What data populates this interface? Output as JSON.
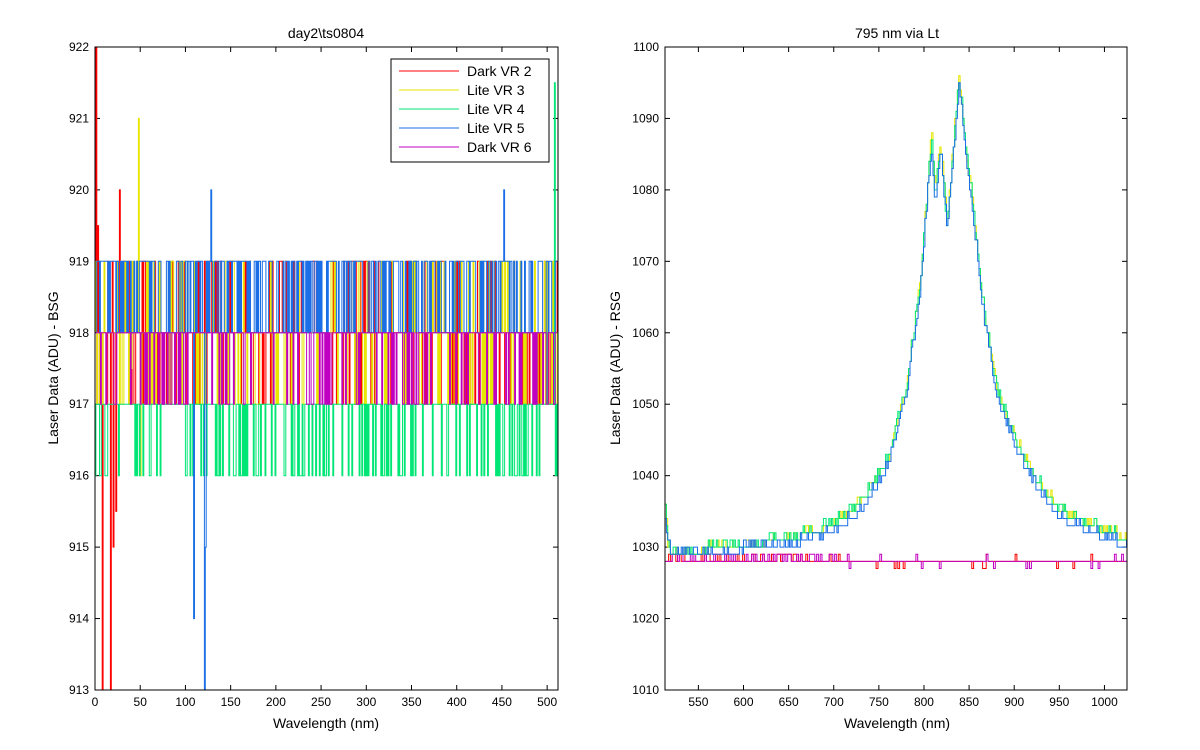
{
  "chart_data": [
    {
      "type": "line",
      "title": "day2\\ts0804",
      "xlabel": "Wavelength (nm)",
      "ylabel": "Laser Data (ADU) - BSG",
      "xlim": [
        0,
        512
      ],
      "ylim": [
        913,
        922
      ],
      "xticks": [
        0,
        50,
        100,
        150,
        200,
        250,
        300,
        350,
        400,
        450,
        500
      ],
      "yticks": [
        913,
        914,
        915,
        916,
        917,
        918,
        919,
        920,
        921,
        922
      ],
      "grid": false,
      "legend_position": "top-right",
      "series": [
        {
          "name": "Dark VR 2",
          "color": "#ff0000",
          "baseline": 918,
          "noise_high": 919,
          "noise_low": 917,
          "noise_rate": 0.35,
          "spikes": [
            [
              1,
              922
            ],
            [
              3,
              919.5
            ],
            [
              8,
              913
            ],
            [
              17,
              913
            ],
            [
              20,
              915
            ],
            [
              23,
              915.5
            ],
            [
              27,
              920
            ]
          ]
        },
        {
          "name": "Lite VR 3",
          "color": "#e6e600",
          "baseline": 918,
          "noise_high": 919,
          "noise_low": 917,
          "noise_rate": 0.3,
          "spikes": [
            [
              40,
              917.5
            ],
            [
              48,
              921
            ],
            [
              50,
              916
            ]
          ]
        },
        {
          "name": "Lite VR 4",
          "color": "#00e676",
          "baseline": 917,
          "noise_high": 916,
          "noise_low": 916,
          "noise_rate": 0.25,
          "spikes": [
            [
              354,
              916
            ],
            [
              465,
              916
            ],
            [
              500,
              918
            ],
            [
              508,
              921.5
            ]
          ]
        },
        {
          "name": "Lite VR 5",
          "color": "#1a6fe6",
          "baseline": 918,
          "noise_high": 919,
          "noise_low": 919,
          "noise_rate": 0.55,
          "spikes": [
            [
              109,
              914
            ],
            [
              121,
              913
            ],
            [
              122,
              915
            ],
            [
              128,
              920
            ],
            [
              452,
              920
            ]
          ]
        },
        {
          "name": "Dark VR 6",
          "color": "#c000c0",
          "baseline": 918,
          "noise_high": 917,
          "noise_low": 917,
          "noise_rate": 0.18,
          "spikes": []
        }
      ]
    },
    {
      "type": "line",
      "title": "795 nm via Lt",
      "xlabel": "Wavelength (nm)",
      "ylabel": "Laser Data (ADU) - RSG",
      "xlim": [
        513,
        1025
      ],
      "ylim": [
        1010,
        1100
      ],
      "xticks": [
        550,
        600,
        650,
        700,
        750,
        800,
        850,
        900,
        950,
        1000
      ],
      "yticks": [
        1010,
        1020,
        1030,
        1040,
        1050,
        1060,
        1070,
        1080,
        1090,
        1100
      ],
      "grid": false,
      "series": [
        {
          "color": "#ff0000",
          "shape": "flat",
          "baseline": 1028
        },
        {
          "color": "#c000c0",
          "shape": "flat",
          "baseline": 1028
        },
        {
          "color": "#e6e600",
          "shape": "peak",
          "points": [
            [
              513,
              1036
            ],
            [
              516,
              1030
            ],
            [
              520,
              1029
            ],
            [
              560,
              1029.5
            ],
            [
              600,
              1030
            ],
            [
              650,
              1031
            ],
            [
              700,
              1033
            ],
            [
              730,
              1036
            ],
            [
              760,
              1042
            ],
            [
              780,
              1052
            ],
            [
              795,
              1066
            ],
            [
              803,
              1079
            ],
            [
              808,
              1088
            ],
            [
              812,
              1080
            ],
            [
              818,
              1087
            ],
            [
              825,
              1075
            ],
            [
              832,
              1085
            ],
            [
              838,
              1096
            ],
            [
              843,
              1090
            ],
            [
              847,
              1084
            ],
            [
              852,
              1080
            ],
            [
              865,
              1064
            ],
            [
              880,
              1052
            ],
            [
              900,
              1045
            ],
            [
              920,
              1040
            ],
            [
              950,
              1035
            ],
            [
              1000,
              1032
            ],
            [
              1025,
              1031
            ]
          ]
        },
        {
          "color": "#00e676",
          "shape": "peak",
          "points": [
            [
              513,
              1035
            ],
            [
              516,
              1030
            ],
            [
              520,
              1029
            ],
            [
              560,
              1029.5
            ],
            [
              600,
              1030
            ],
            [
              650,
              1031
            ],
            [
              700,
              1033
            ],
            [
              730,
              1036
            ],
            [
              760,
              1042
            ],
            [
              780,
              1052
            ],
            [
              795,
              1066
            ],
            [
              803,
              1079
            ],
            [
              808,
              1087
            ],
            [
              812,
              1079
            ],
            [
              818,
              1086
            ],
            [
              825,
              1075
            ],
            [
              832,
              1085
            ],
            [
              838,
              1095
            ],
            [
              843,
              1090
            ],
            [
              847,
              1084
            ],
            [
              852,
              1080
            ],
            [
              865,
              1064
            ],
            [
              880,
              1052
            ],
            [
              900,
              1045
            ],
            [
              920,
              1040
            ],
            [
              950,
              1035
            ],
            [
              1000,
              1032
            ],
            [
              1025,
              1031
            ]
          ]
        },
        {
          "color": "#1a6fe6",
          "shape": "peak",
          "points": [
            [
              513,
              1034
            ],
            [
              516,
              1030
            ],
            [
              520,
              1029
            ],
            [
              560,
              1029
            ],
            [
              600,
              1029.5
            ],
            [
              650,
              1030
            ],
            [
              700,
              1032
            ],
            [
              730,
              1035
            ],
            [
              760,
              1041
            ],
            [
              780,
              1051
            ],
            [
              795,
              1065
            ],
            [
              803,
              1078
            ],
            [
              808,
              1086
            ],
            [
              812,
              1078
            ],
            [
              818,
              1086
            ],
            [
              825,
              1074
            ],
            [
              832,
              1084
            ],
            [
              838,
              1094
            ],
            [
              843,
              1089
            ],
            [
              847,
              1083
            ],
            [
              852,
              1079
            ],
            [
              865,
              1063
            ],
            [
              880,
              1051
            ],
            [
              900,
              1044
            ],
            [
              920,
              1039
            ],
            [
              950,
              1034
            ],
            [
              1000,
              1031
            ],
            [
              1025,
              1030
            ]
          ]
        }
      ]
    }
  ]
}
